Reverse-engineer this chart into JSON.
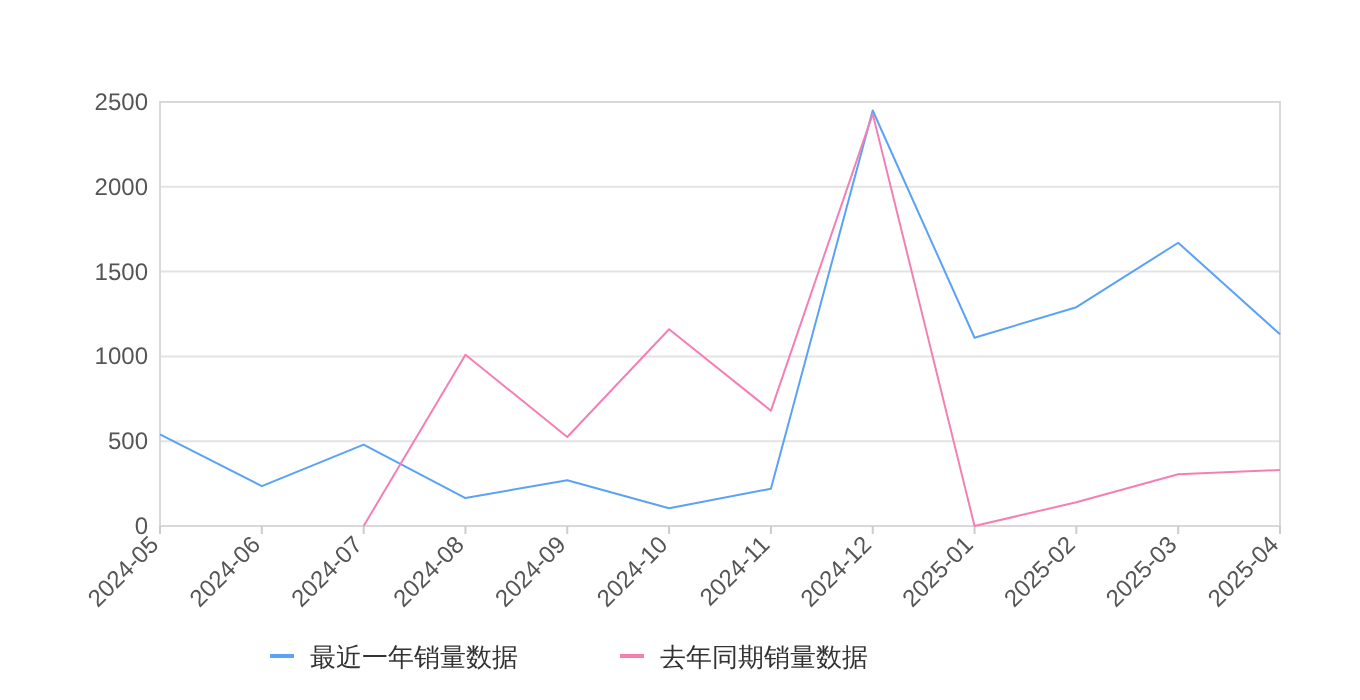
{
  "chart_data": {
    "type": "line",
    "categories": [
      "2024-05",
      "2024-06",
      "2024-07",
      "2024-08",
      "2024-09",
      "2024-10",
      "2024-11",
      "2024-12",
      "2025-01",
      "2025-02",
      "2025-03",
      "2025-04"
    ],
    "series": [
      {
        "name": "最近一年销量数据",
        "color": "#5aa2f5",
        "values": [
          540,
          235,
          480,
          165,
          270,
          105,
          220,
          2450,
          1110,
          1290,
          1670,
          1130
        ]
      },
      {
        "name": "去年同期销量数据",
        "color": "#f57fb5",
        "values": [
          null,
          null,
          0,
          1010,
          525,
          1160,
          680,
          2430,
          0,
          140,
          305,
          330
        ]
      }
    ],
    "ylim": [
      0,
      2500
    ],
    "yticks": [
      0,
      500,
      1000,
      1500,
      2000,
      2500
    ],
    "grid": "y",
    "legend": "bottom",
    "marker": "none",
    "line_style": "solid"
  }
}
